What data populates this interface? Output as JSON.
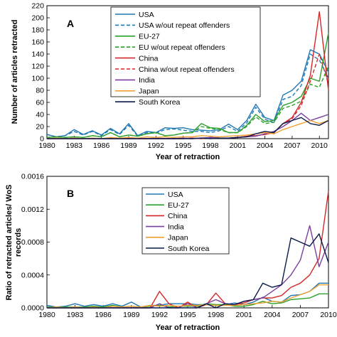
{
  "chart_data": [
    {
      "type": "line",
      "panel_label": "A",
      "xlabel": "Year of retraction",
      "ylabel": "Number of articles retracted",
      "xlim": [
        1980,
        2011
      ],
      "ylim": [
        0,
        220
      ],
      "x_ticks": [
        "1980",
        "1983",
        "1986",
        "1989",
        "1992",
        "1995",
        "1998",
        "2001",
        "2004",
        "2007",
        "2010"
      ],
      "y_ticks": [
        "0",
        "20",
        "40",
        "60",
        "80",
        "100",
        "120",
        "140",
        "160",
        "180",
        "200",
        "220"
      ],
      "grid": false,
      "legend_position": "top-center",
      "x": [
        1980,
        1981,
        1982,
        1983,
        1984,
        1985,
        1986,
        1987,
        1988,
        1989,
        1990,
        1991,
        1992,
        1993,
        1994,
        1995,
        1996,
        1997,
        1998,
        1999,
        2000,
        2001,
        2002,
        2003,
        2004,
        2005,
        2006,
        2007,
        2008,
        2009,
        2010,
        2011
      ],
      "series": [
        {
          "name": "USA",
          "color": "#1f78b4",
          "dash": "solid",
          "values": [
            7,
            3,
            5,
            15,
            7,
            13,
            6,
            17,
            8,
            25,
            5,
            12,
            10,
            18,
            17,
            18,
            15,
            14,
            13,
            15,
            24,
            15,
            30,
            57,
            35,
            30,
            72,
            80,
            95,
            147,
            140,
            110
          ]
        },
        {
          "name": "USA w/out repeat offenders",
          "color": "#1f78b4",
          "dash": "dashed",
          "values": [
            7,
            3,
            5,
            12,
            6,
            12,
            5,
            15,
            7,
            22,
            4,
            10,
            9,
            15,
            16,
            14,
            12,
            12,
            10,
            13,
            20,
            12,
            26,
            52,
            32,
            26,
            65,
            70,
            88,
            140,
            130,
            100
          ]
        },
        {
          "name": "EU-27",
          "color": "#2ca02c",
          "dash": "solid",
          "values": [
            2,
            3,
            2,
            3,
            2,
            5,
            3,
            10,
            3,
            6,
            4,
            8,
            10,
            5,
            6,
            9,
            10,
            25,
            18,
            17,
            10,
            10,
            22,
            40,
            28,
            30,
            55,
            60,
            70,
            100,
            95,
            175
          ]
        },
        {
          "name": "EU w/out repeat offenders",
          "color": "#2ca02c",
          "dash": "dashed",
          "values": [
            2,
            3,
            2,
            3,
            2,
            5,
            3,
            10,
            3,
            6,
            4,
            8,
            10,
            5,
            6,
            9,
            10,
            20,
            17,
            15,
            10,
            10,
            20,
            36,
            25,
            27,
            50,
            55,
            62,
            90,
            85,
            120
          ]
        },
        {
          "name": "China",
          "color": "#d62728",
          "dash": "solid",
          "values": [
            0,
            0,
            0,
            0,
            0,
            0,
            0,
            0,
            0,
            0,
            0,
            0,
            0,
            0,
            0,
            0,
            1,
            0,
            2,
            1,
            1,
            2,
            4,
            5,
            7,
            10,
            25,
            35,
            60,
            105,
            210,
            80
          ]
        },
        {
          "name": "China w/out repeat offenders",
          "color": "#d62728",
          "dash": "dashed",
          "values": [
            0,
            0,
            0,
            0,
            0,
            0,
            0,
            0,
            0,
            0,
            0,
            0,
            0,
            0,
            0,
            0,
            1,
            0,
            2,
            1,
            1,
            2,
            4,
            5,
            7,
            10,
            25,
            33,
            55,
            95,
            140,
            90
          ]
        },
        {
          "name": "India",
          "color": "#7b3fa0",
          "dash": "solid",
          "values": [
            0,
            0,
            0,
            0,
            0,
            0,
            0,
            0,
            0,
            0,
            0,
            0,
            1,
            0,
            0,
            1,
            0,
            1,
            2,
            1,
            1,
            2,
            3,
            4,
            8,
            12,
            20,
            30,
            42,
            30,
            35,
            40
          ]
        },
        {
          "name": "Japan",
          "color": "#f0a030",
          "dash": "solid",
          "values": [
            0,
            1,
            0,
            1,
            0,
            1,
            0,
            2,
            1,
            2,
            1,
            3,
            2,
            3,
            2,
            3,
            3,
            5,
            4,
            3,
            4,
            5,
            6,
            8,
            10,
            8,
            15,
            20,
            25,
            30,
            25,
            30
          ]
        },
        {
          "name": "South Korea",
          "color": "#0a1a4a",
          "dash": "solid",
          "values": [
            0,
            0,
            0,
            0,
            0,
            0,
            0,
            0,
            0,
            0,
            0,
            0,
            0,
            0,
            0,
            0,
            0,
            1,
            0,
            1,
            1,
            2,
            3,
            8,
            12,
            10,
            25,
            30,
            35,
            25,
            22,
            30
          ]
        }
      ]
    },
    {
      "type": "line",
      "panel_label": "B",
      "xlabel": "Year of retraction",
      "ylabel": "Ratio of retracted articles/ WoS records",
      "xlim": [
        1980,
        2010
      ],
      "ylim": [
        0,
        0.0016
      ],
      "x_ticks": [
        "1980",
        "1983",
        "1986",
        "1989",
        "1992",
        "1995",
        "1998",
        "2001",
        "2004",
        "2007",
        "2010"
      ],
      "y_ticks": [
        "0.0000",
        "0.0004",
        "0.0008",
        "0.0012",
        "0.0016"
      ],
      "grid": false,
      "legend_position": "top-center",
      "x": [
        1980,
        1981,
        1982,
        1983,
        1984,
        1985,
        1986,
        1987,
        1988,
        1989,
        1990,
        1991,
        1992,
        1993,
        1994,
        1995,
        1996,
        1997,
        1998,
        1999,
        2000,
        2001,
        2002,
        2003,
        2004,
        2005,
        2006,
        2007,
        2008,
        2009,
        2010
      ],
      "series": [
        {
          "name": "USA",
          "color": "#1f78b4",
          "dash": "solid",
          "values": [
            3e-05,
            1e-05,
            2e-05,
            5e-05,
            2e-05,
            4e-05,
            2e-05,
            5e-05,
            2e-05,
            7e-05,
            1e-05,
            3e-05,
            3e-05,
            5e-05,
            5e-05,
            5e-05,
            4e-05,
            4e-05,
            3e-05,
            4e-05,
            6e-05,
            4e-05,
            7e-05,
            0.00013,
            8e-05,
            7e-05,
            0.00015,
            0.00016,
            0.0002,
            0.0003,
            0.0003
          ]
        },
        {
          "name": "EU-27",
          "color": "#2ca02c",
          "dash": "solid",
          "values": [
            1e-05,
            1e-05,
            1e-05,
            1e-05,
            1e-05,
            2e-05,
            1e-05,
            3e-05,
            1e-05,
            2e-05,
            1e-05,
            2e-05,
            3e-05,
            1e-05,
            2e-05,
            2e-05,
            2e-05,
            5e-05,
            4e-05,
            4e-05,
            2e-05,
            2e-05,
            4e-05,
            8e-05,
            5e-05,
            6e-05,
            0.0001,
            0.00011,
            0.00012,
            0.00017,
            0.00017
          ]
        },
        {
          "name": "China",
          "color": "#d62728",
          "dash": "solid",
          "values": [
            0,
            0,
            0,
            0,
            0,
            0,
            0,
            0,
            0,
            0,
            0,
            0,
            0.0002,
            5e-05,
            0,
            7e-05,
            0,
            4e-05,
            0.00018,
            5e-05,
            4e-05,
            6e-05,
            0.0001,
            0.00012,
            0.00012,
            0.00015,
            0.00025,
            0.0003,
            0.0004,
            0.0006,
            0.00142
          ]
        },
        {
          "name": "India",
          "color": "#7b3fa0",
          "dash": "solid",
          "values": [
            0,
            0,
            0,
            0,
            0,
            0,
            0,
            0,
            0,
            0,
            0,
            0,
            5e-05,
            0,
            0,
            5e-05,
            0,
            5e-05,
            0.0001,
            5e-05,
            4e-05,
            8e-05,
            0.0001,
            0.00012,
            0.0002,
            0.00028,
            0.0004,
            0.00058,
            0.001,
            0.0005,
            0.0008
          ]
        },
        {
          "name": "Japan",
          "color": "#f0a030",
          "dash": "solid",
          "values": [
            0,
            1e-05,
            0,
            1e-05,
            0,
            1e-05,
            0,
            2e-05,
            1e-05,
            2e-05,
            1e-05,
            3e-05,
            2e-05,
            3e-05,
            2e-05,
            3e-05,
            3e-05,
            4e-05,
            3e-05,
            3e-05,
            3e-05,
            4e-05,
            5e-05,
            6e-05,
            8e-05,
            7e-05,
            0.00012,
            0.00016,
            0.0002,
            0.00028,
            0.00028
          ]
        },
        {
          "name": "South Korea",
          "color": "#0a1a4a",
          "dash": "solid",
          "values": [
            0,
            0,
            0,
            0,
            0,
            0,
            0,
            0,
            0,
            0,
            0,
            0,
            0,
            0,
            0,
            0,
            0,
            5e-05,
            0,
            5e-05,
            4e-05,
            8e-05,
            0.0001,
            0.0003,
            0.00025,
            0.00028,
            0.00085,
            0.0008,
            0.00075,
            0.0009,
            0.00055
          ]
        }
      ]
    }
  ]
}
